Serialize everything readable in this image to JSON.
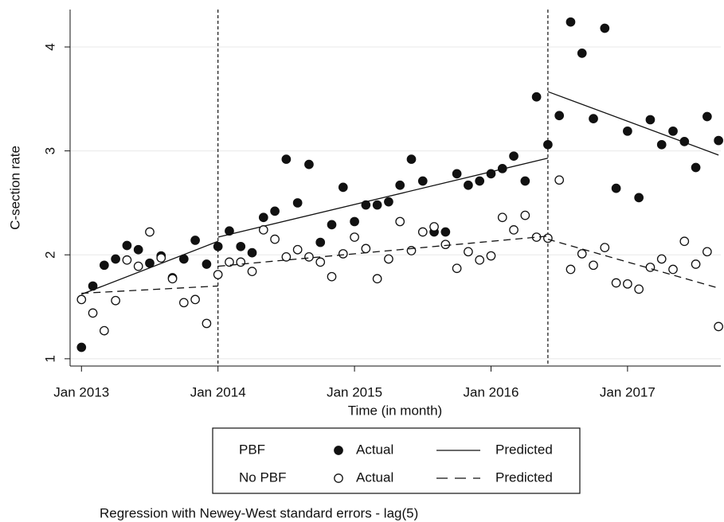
{
  "chart_data": {
    "type": "scatter",
    "ylabel": "C-section rate",
    "xlabel": "Time (in month)",
    "note": "Regression with Newey-West standard errors - lag(5)",
    "xlim": [
      -1,
      56.2
    ],
    "ylim": [
      0.93,
      4.36
    ],
    "xticks": [
      {
        "value": 0,
        "label": "Jan 2013"
      },
      {
        "value": 12,
        "label": "Jan 2014"
      },
      {
        "value": 24,
        "label": "Jan 2015"
      },
      {
        "value": 36,
        "label": "Jan 2016"
      },
      {
        "value": 48,
        "label": "Jan 2017"
      }
    ],
    "yticks": [
      1,
      2,
      3,
      4
    ],
    "grid": true,
    "vlines": [
      12,
      41
    ],
    "x": [
      0,
      1,
      2,
      3,
      4,
      5,
      6,
      7,
      8,
      9,
      10,
      11,
      12,
      13,
      14,
      15,
      16,
      17,
      18,
      19,
      20,
      21,
      22,
      23,
      24,
      25,
      26,
      27,
      28,
      29,
      30,
      31,
      32,
      33,
      34,
      35,
      36,
      37,
      38,
      39,
      40,
      41,
      42,
      43,
      44,
      45,
      46,
      47,
      48,
      49,
      50,
      51,
      52,
      53,
      54,
      55,
      56
    ],
    "series": [
      {
        "group": "PBF",
        "name": "Actual",
        "marker": "filled",
        "color": "#111111",
        "values": [
          1.11,
          1.7,
          1.9,
          1.96,
          2.09,
          2.05,
          1.92,
          1.99,
          1.78,
          1.96,
          2.14,
          1.91,
          2.08,
          2.23,
          2.08,
          2.02,
          2.36,
          2.42,
          2.92,
          2.5,
          2.87,
          2.12,
          2.29,
          2.65,
          2.32,
          2.48,
          2.48,
          2.51,
          2.67,
          2.92,
          2.71,
          2.22,
          2.22,
          2.78,
          2.67,
          2.71,
          2.78,
          2.83,
          2.95,
          2.71,
          3.52,
          3.06,
          3.34,
          4.24,
          3.94,
          3.31,
          4.18,
          2.64,
          3.19,
          2.55,
          3.3,
          3.06,
          3.19,
          3.09,
          2.84,
          3.33,
          3.1
        ]
      },
      {
        "name": "Predicted",
        "dash": "solid",
        "color": "#111111",
        "x": [
          0,
          12,
          null,
          12,
          41,
          null,
          41,
          56
        ],
        "values": [
          1.62,
          2.13,
          null,
          2.17,
          2.93,
          null,
          3.57,
          2.96
        ]
      },
      {
        "group": "No PBF",
        "name": "Actual",
        "marker": "hollow",
        "color": "#111111",
        "values": [
          1.57,
          1.44,
          1.27,
          1.56,
          1.95,
          1.89,
          2.22,
          1.97,
          1.77,
          1.54,
          1.57,
          1.34,
          1.81,
          1.93,
          1.93,
          1.84,
          2.24,
          2.15,
          1.98,
          2.05,
          1.98,
          1.93,
          1.79,
          2.01,
          2.17,
          2.06,
          1.77,
          1.96,
          2.32,
          2.04,
          2.22,
          2.27,
          2.1,
          1.87,
          2.03,
          1.95,
          1.99,
          2.36,
          2.24,
          2.38,
          2.17,
          2.16,
          2.72,
          1.86,
          2.01,
          1.9,
          2.07,
          1.73,
          1.72,
          1.67,
          1.88,
          1.96,
          1.86,
          2.13,
          1.91,
          2.03,
          1.31
        ]
      },
      {
        "name": "Predicted",
        "dash": "dashed",
        "color": "#111111",
        "x": [
          0,
          12,
          null,
          12,
          41,
          null,
          41,
          56
        ],
        "values": [
          1.63,
          1.7,
          null,
          1.89,
          2.18,
          null,
          2.15,
          1.68
        ]
      }
    ]
  }
}
